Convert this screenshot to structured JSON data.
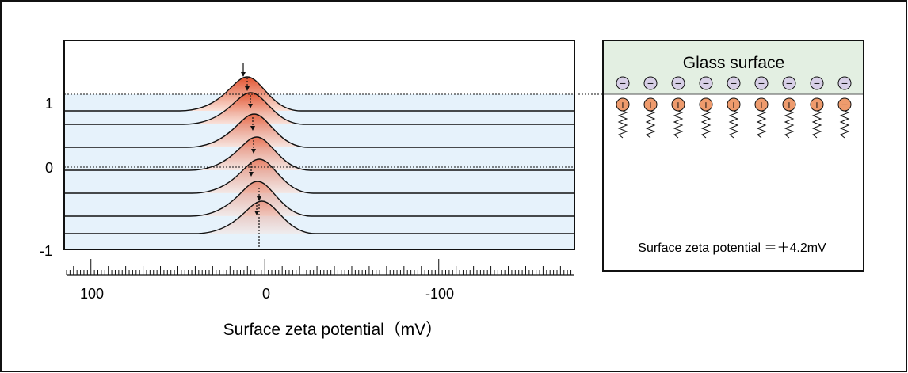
{
  "plot": {
    "y_ticks": [
      {
        "label": "1",
        "value": 1
      },
      {
        "label": "0",
        "value": 0
      },
      {
        "label": "-1",
        "value": -1
      }
    ],
    "x_ticks": [
      {
        "label": "100",
        "value": 100
      },
      {
        "label": "0",
        "value": 0
      },
      {
        "label": "-100",
        "value": -100
      }
    ],
    "x_axis_title": "Surface zeta potential（mV）",
    "peak_potentials_mV": [
      11,
      9,
      7,
      5.5,
      4,
      5,
      2.5,
      0
    ],
    "colors": {
      "band": "#e6f2fb",
      "peak_fill": "#e2532f",
      "peak_fill_light": "#fbe3da"
    }
  },
  "panel": {
    "title": "Glass surface",
    "zeta_text": "Surface zeta potential ＝＋4.2mV",
    "negative_charge_count": 9,
    "positive_charges": [
      "+",
      "+",
      "+",
      "+",
      "+",
      "+",
      "+",
      "+",
      "−"
    ],
    "negative_symbol": "−",
    "colors": {
      "glass": "#e3efe2",
      "negative_ion": "#d7cfe6",
      "positive_ion": "#ee9b6d"
    }
  }
}
